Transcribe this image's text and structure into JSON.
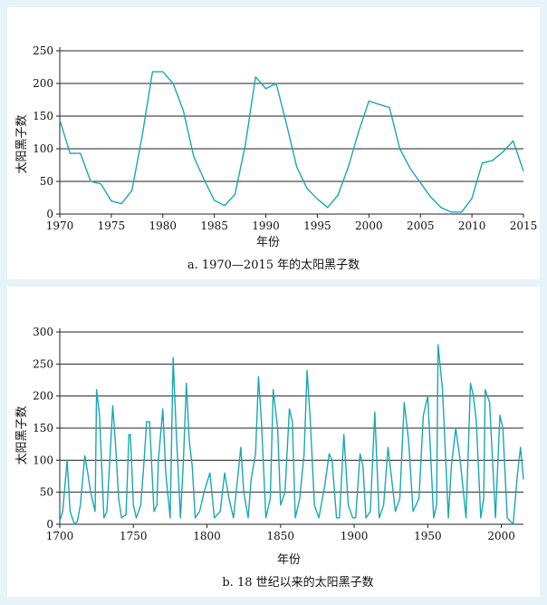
{
  "chart_data": [
    {
      "id": "a",
      "type": "line",
      "caption": "a.  1970—2015 年的太阳黑子数",
      "xlabel": "年份",
      "ylabel": "太阳黑子数",
      "xlim": [
        1970,
        2015
      ],
      "ylim": [
        0,
        250
      ],
      "xticks": [
        1970,
        1975,
        1980,
        1985,
        1990,
        1995,
        2000,
        2005,
        2010,
        2015
      ],
      "yticks": [
        0,
        50,
        100,
        150,
        200,
        250
      ],
      "grid": "horizontal",
      "line_color": "#1aa7b5",
      "series": [
        {
          "name": "太阳黑子数",
          "x": [
            1970,
            1971,
            1972,
            1973,
            1974,
            1975,
            1976,
            1977,
            1978,
            1979,
            1980,
            1981,
            1982,
            1983,
            1984,
            1985,
            1986,
            1987,
            1988,
            1989,
            1990,
            1991,
            1992,
            1993,
            1994,
            1995,
            1996,
            1997,
            1998,
            1999,
            2000,
            2001,
            2002,
            2003,
            2004,
            2005,
            2006,
            2007,
            2008,
            2009,
            2010,
            2011,
            2012,
            2013,
            2014,
            2015
          ],
          "values": [
            144,
            93,
            93,
            50,
            46,
            20,
            16,
            36,
            120,
            218,
            218,
            200,
            158,
            88,
            53,
            21,
            13,
            30,
            105,
            210,
            192,
            200,
            138,
            72,
            39,
            23,
            10,
            29,
            72,
            126,
            173,
            168,
            163,
            100,
            70,
            48,
            26,
            10,
            3,
            3,
            24,
            78,
            82,
            95,
            112,
            66
          ]
        }
      ]
    },
    {
      "id": "b",
      "type": "line",
      "caption": "b.  18 世纪以来的太阳黑子数",
      "xlabel": "年份",
      "ylabel": "太阳黑子数",
      "xlim": [
        1700,
        2015
      ],
      "ylim": [
        0,
        300
      ],
      "xticks": [
        1700,
        1750,
        1800,
        1850,
        1900,
        1950,
        2000
      ],
      "yticks": [
        0,
        50,
        100,
        150,
        200,
        250,
        300
      ],
      "grid": "horizontal",
      "line_color": "#1aa7b5",
      "series": [
        {
          "name": "太阳黑子数",
          "x": [
            1700,
            1702,
            1705,
            1707,
            1710,
            1712,
            1714,
            1717,
            1719,
            1721,
            1724,
            1725,
            1727,
            1730,
            1732,
            1734,
            1736,
            1738,
            1740,
            1742,
            1745,
            1747,
            1748,
            1750,
            1752,
            1755,
            1757,
            1759,
            1761,
            1764,
            1766,
            1767,
            1770,
            1772,
            1775,
            1777,
            1779,
            1782,
            1784,
            1786,
            1788,
            1790,
            1792,
            1795,
            1798,
            1802,
            1805,
            1809,
            1812,
            1815,
            1818,
            1823,
            1825,
            1828,
            1830,
            1833,
            1835,
            1837,
            1840,
            1843,
            1845,
            1848,
            1850,
            1853,
            1856,
            1858,
            1860,
            1863,
            1866,
            1868,
            1870,
            1873,
            1876,
            1880,
            1883,
            1885,
            1888,
            1890,
            1893,
            1896,
            1899,
            1901,
            1904,
            1906,
            1908,
            1911,
            1914,
            1917,
            1920,
            1923,
            1926,
            1928,
            1931,
            1934,
            1937,
            1940,
            1944,
            1947,
            1950,
            1954,
            1956,
            1957,
            1960,
            1964,
            1966,
            1969,
            1972,
            1976,
            1979,
            1981,
            1983,
            1986,
            1988,
            1989,
            1992,
            1996,
            1999,
            2001,
            2004,
            2008,
            2011,
            2013,
            2015
          ],
          "values": [
            5,
            20,
            100,
            20,
            0,
            5,
            30,
            107,
            80,
            50,
            20,
            210,
            170,
            10,
            20,
            100,
            185,
            120,
            40,
            10,
            15,
            140,
            140,
            30,
            10,
            30,
            90,
            160,
            160,
            20,
            30,
            100,
            180,
            80,
            10,
            260,
            150,
            10,
            100,
            220,
            130,
            90,
            10,
            20,
            50,
            80,
            10,
            20,
            80,
            40,
            10,
            120,
            50,
            10,
            70,
            110,
            230,
            160,
            10,
            40,
            210,
            150,
            30,
            50,
            180,
            160,
            10,
            40,
            110,
            240,
            170,
            30,
            10,
            60,
            110,
            100,
            10,
            10,
            140,
            30,
            10,
            10,
            110,
            90,
            10,
            20,
            175,
            10,
            30,
            120,
            60,
            20,
            40,
            190,
            130,
            20,
            40,
            170,
            200,
            10,
            30,
            280,
            210,
            10,
            90,
            150,
            100,
            10,
            220,
            200,
            160,
            10,
            40,
            210,
            190,
            10,
            170,
            150,
            10,
            0,
            80,
            120,
            70
          ]
        }
      ]
    }
  ]
}
